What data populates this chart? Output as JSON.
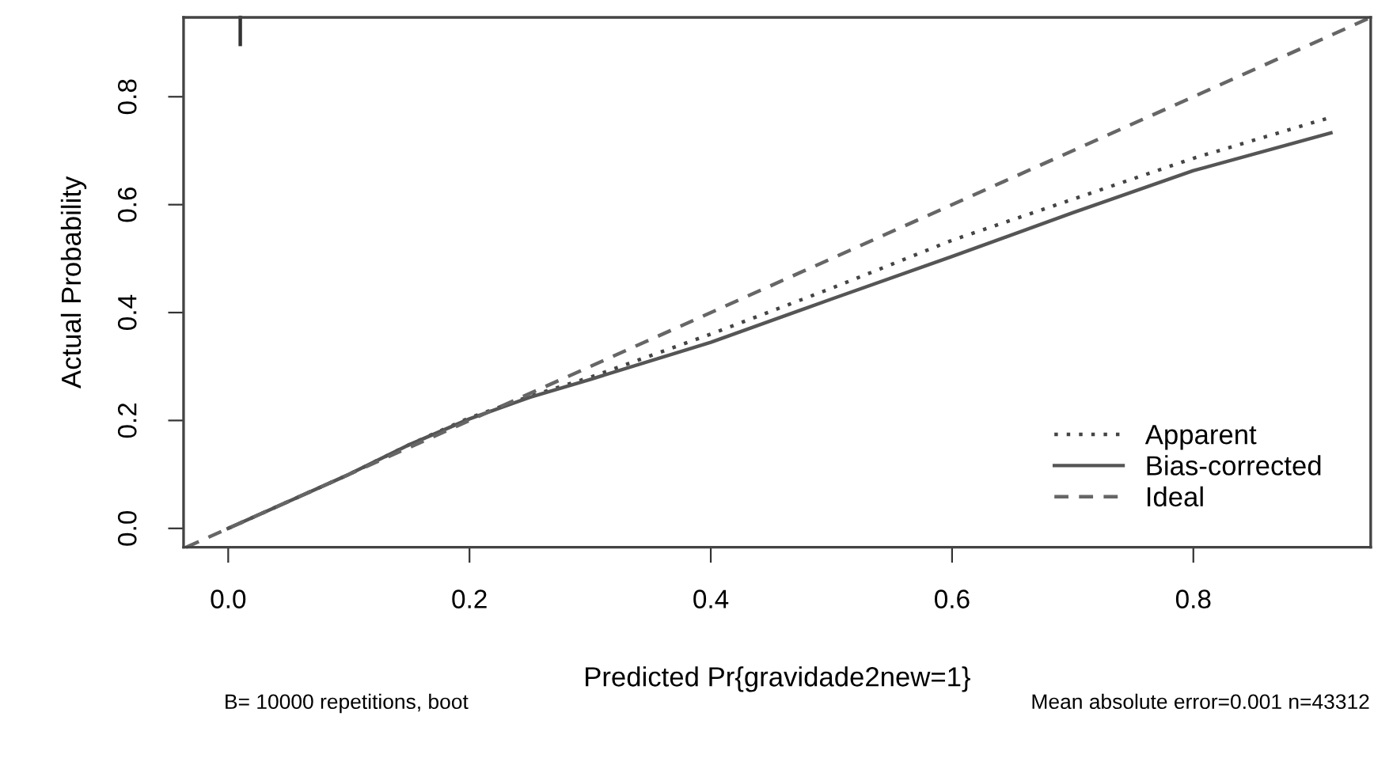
{
  "chart_data": {
    "type": "line",
    "xlabel": "Predicted Pr{gravidade2new=1}",
    "ylabel": "Actual Probability",
    "annotations": [
      "B= 10000 repetitions, boot",
      "Mean absolute error=0.001 n=43312"
    ],
    "series": [
      {
        "name": "Apparent",
        "color": "#444444",
        "line_style": "dotted",
        "x": [
          0,
          0.05,
          0.1,
          0.15,
          0.2,
          0.25,
          0.3,
          0.4,
          0.5,
          0.6,
          0.7,
          0.8,
          0.914
        ],
        "values": [
          0,
          0.05,
          0.1,
          0.155,
          0.205,
          0.245,
          0.28,
          0.36,
          0.445,
          0.534,
          0.61,
          0.686,
          0.762
        ]
      },
      {
        "name": "Bias-corrected",
        "color": "#555555",
        "line_style": "solid",
        "x": [
          0,
          0.05,
          0.1,
          0.15,
          0.2,
          0.25,
          0.3,
          0.4,
          0.5,
          0.6,
          0.7,
          0.8,
          0.914
        ],
        "values": [
          0,
          0.05,
          0.1,
          0.155,
          0.203,
          0.243,
          0.276,
          0.345,
          0.425,
          0.504,
          0.585,
          0.663,
          0.733
        ]
      },
      {
        "name": "Ideal",
        "color": "#666666",
        "line_style": "dashed",
        "x": [
          -0.035,
          0.947
        ],
        "values": [
          -0.035,
          0.947
        ]
      },
      {
        "color": "#333333",
        "line_style": "solid",
        "x": [
          0.01,
          0.01
        ],
        "values": [
          0.947,
          0.897
        ]
      }
    ],
    "xlim": [
      -0.037,
      0.947
    ],
    "ylim": [
      -0.035,
      0.947
    ],
    "xticks": [
      {
        "value": 0,
        "label": "0.0"
      },
      0.2,
      0.4,
      0.6,
      0.8
    ],
    "yticks": [
      {
        "value": 0,
        "label": "0.0"
      },
      0.2,
      0.4,
      0.6,
      0.8
    ],
    "grid": false,
    "legend": "bottom right"
  }
}
